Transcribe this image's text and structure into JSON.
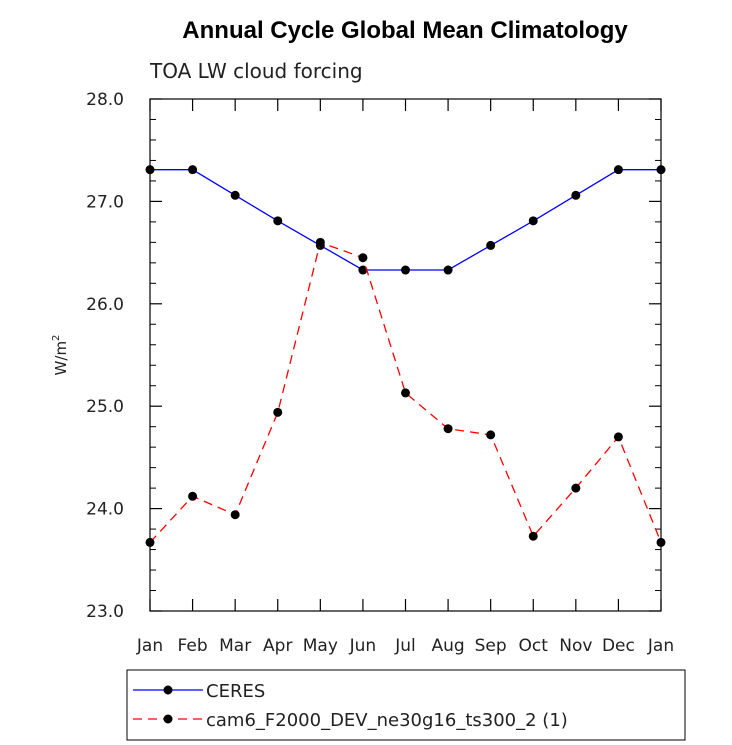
{
  "chart_data": {
    "type": "line",
    "title": "Annual Cycle Global Mean Climatology",
    "subtitle": "TOA LW cloud forcing",
    "xlabel": "",
    "ylabel": "W/m",
    "ylabel_superscript": "2",
    "categories": [
      "Jan",
      "Feb",
      "Mar",
      "Apr",
      "May",
      "Jun",
      "Jul",
      "Aug",
      "Sep",
      "Oct",
      "Nov",
      "Dec",
      "Jan"
    ],
    "ylim": [
      23.0,
      28.0
    ],
    "yticks": [
      "23.0",
      "24.0",
      "25.0",
      "26.0",
      "27.0",
      "28.0"
    ],
    "series": [
      {
        "name": "CERES",
        "color": "#0000ff",
        "dash": "solid",
        "values": [
          27.31,
          27.31,
          27.06,
          26.81,
          26.57,
          26.33,
          26.33,
          26.33,
          26.57,
          26.81,
          27.06,
          27.31,
          27.31
        ]
      },
      {
        "name": "cam6_F2000_DEV_ne30g16_ts300_2 (1)",
        "color": "#ff0000",
        "dash": "dashed",
        "values": [
          23.67,
          24.12,
          23.94,
          24.94,
          26.6,
          26.45,
          25.13,
          24.78,
          24.72,
          23.73,
          24.2,
          24.7,
          23.67
        ]
      }
    ],
    "legend_position": "bottom-left",
    "grid": false
  }
}
